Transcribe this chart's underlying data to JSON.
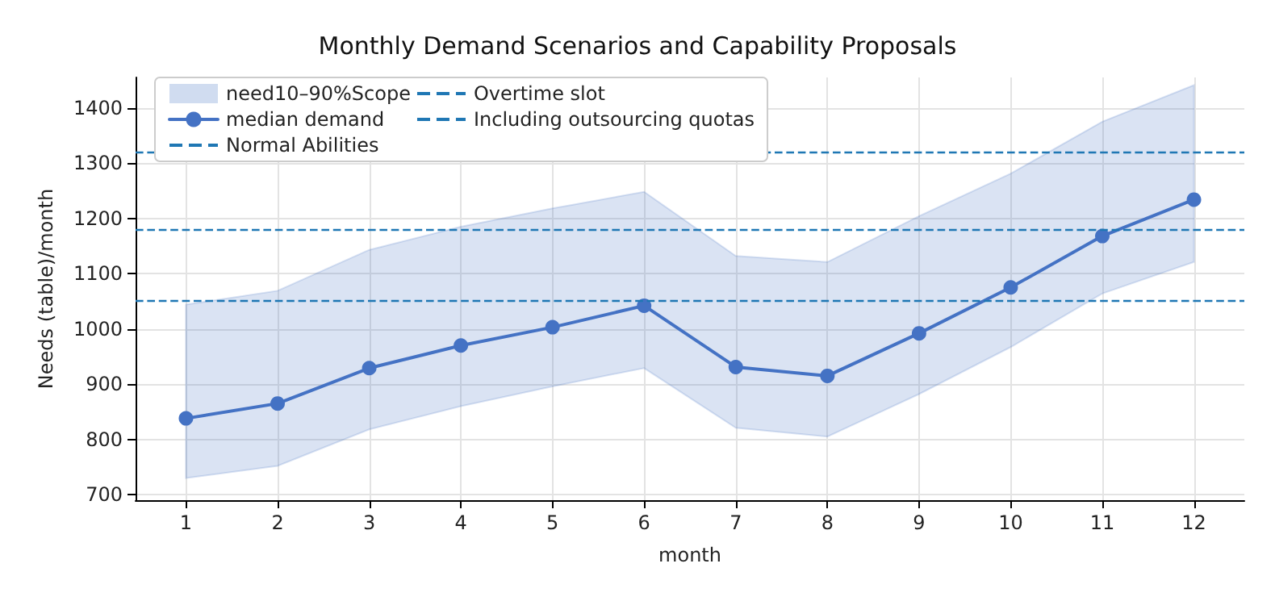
{
  "chart_data": {
    "type": "line",
    "title": "Monthly Demand Scenarios and Capability Proposals",
    "xlabel": "month",
    "ylabel": "Needs (table)/month",
    "x": [
      1,
      2,
      3,
      4,
      5,
      6,
      7,
      8,
      9,
      10,
      11,
      12
    ],
    "series": [
      {
        "name": "need10–90%Scope",
        "type": "area",
        "color": "#4472c4",
        "values": [
          null,
          null,
          null,
          null,
          null,
          null,
          null,
          null,
          null,
          null,
          null,
          null
        ],
        "lower": [
          730,
          752,
          818,
          860,
          896,
          929,
          821,
          805,
          882,
          967,
          1064,
          1121
        ],
        "upper": [
          1044,
          1069,
          1143,
          1185,
          1218,
          1248,
          1132,
          1121,
          1204,
          1281,
          1375,
          1441
        ]
      },
      {
        "name": "median demand",
        "type": "line",
        "color": "#4472c4",
        "marker": "circle",
        "values": [
          838,
          865,
          929,
          970,
          1003,
          1042,
          931,
          915,
          992,
          1075,
          1168,
          1234
        ]
      }
    ],
    "ref_lines": [
      {
        "axis": "y",
        "value": 1050,
        "label": "Normal Abilities",
        "color": "#1f77b4",
        "line_style": "dashed"
      },
      {
        "axis": "y",
        "value": 1180,
        "label": "Overtime slot",
        "color": "#1f77b4",
        "line_style": "dashed"
      },
      {
        "axis": "y",
        "value": 1320,
        "label": "Including outsourcing quotas",
        "color": "#1f77b4",
        "line_style": "dashed"
      }
    ],
    "xlim": [
      0.45,
      12.55
    ],
    "xticks": [
      1,
      2,
      3,
      4,
      5,
      6,
      7,
      8,
      9,
      10,
      11,
      12
    ],
    "ylim": [
      690,
      1455
    ],
    "yticks": [
      700,
      800,
      900,
      1000,
      1100,
      1200,
      1300,
      1400
    ],
    "grid": true,
    "legend": "top left"
  }
}
